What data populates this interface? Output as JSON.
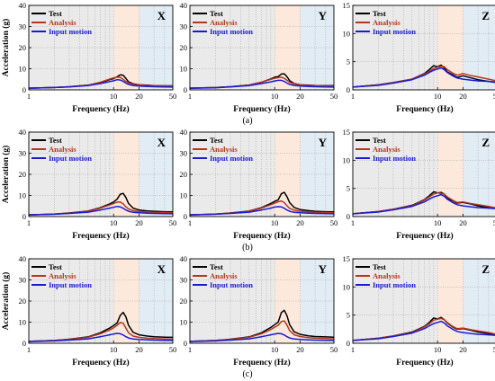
{
  "figure": {
    "row_labels": [
      "(a)",
      "(b)",
      "(c)"
    ],
    "legend_entries": [
      {
        "label": "Test",
        "color": "#000000"
      },
      {
        "label": "Analysis",
        "color": "#b5361c"
      },
      {
        "label": "Input motion",
        "color": "#1a1ad6"
      }
    ],
    "band_colors": {
      "low": "#d9d9d9",
      "mid": "#fbe3d3",
      "high": "#dbe7f3"
    }
  },
  "chart_data": [
    {
      "type": "line",
      "title": "X",
      "xlabel": "Frequency (Hz)",
      "ylabel": "Acceleration (g)",
      "xscale": "log",
      "xlim": [
        1,
        50
      ],
      "ylim": [
        0,
        40
      ],
      "xticks": [
        1,
        10,
        20,
        50
      ],
      "yticks": [
        0,
        10,
        20,
        30,
        40
      ],
      "grid": true,
      "legend_position": "top-left",
      "x": [
        1,
        2,
        3,
        5,
        7,
        9,
        10,
        11,
        12,
        13,
        14,
        15,
        17,
        20,
        25,
        30,
        40,
        50
      ],
      "series": [
        {
          "name": "Test",
          "values": [
            0.8,
            1.1,
            1.5,
            2.2,
            3.4,
            4.8,
            5.3,
            6.2,
            7.1,
            6.9,
            5.4,
            3.8,
            2.9,
            2.4,
            2.2,
            2.0,
            1.9,
            1.9
          ]
        },
        {
          "name": "Analysis",
          "values": [
            0.8,
            1.1,
            1.5,
            2.2,
            3.6,
            5.1,
            5.7,
            6.0,
            5.9,
            5.0,
            4.0,
            3.3,
            2.7,
            2.3,
            2.1,
            2.0,
            1.9,
            1.8
          ]
        },
        {
          "name": "Input motion",
          "values": [
            0.8,
            1.1,
            1.4,
            2.0,
            3.0,
            3.9,
            4.3,
            4.8,
            4.7,
            4.0,
            3.2,
            2.6,
            2.1,
            1.8,
            1.6,
            1.5,
            1.4,
            1.3
          ]
        }
      ]
    },
    {
      "type": "line",
      "title": "Y",
      "xlabel": "Frequency (Hz)",
      "ylabel": "",
      "xscale": "log",
      "xlim": [
        1,
        50
      ],
      "ylim": [
        0,
        40
      ],
      "xticks": [
        1,
        10,
        20,
        50
      ],
      "yticks": [
        0,
        10,
        20,
        30,
        40
      ],
      "grid": true,
      "legend_position": "top-left",
      "x": [
        1,
        2,
        3,
        5,
        7,
        9,
        10,
        11,
        12,
        13,
        14,
        15,
        17,
        20,
        25,
        30,
        40,
        50
      ],
      "series": [
        {
          "name": "Test",
          "values": [
            0.8,
            1.1,
            1.5,
            2.3,
            3.6,
            5.2,
            6.0,
            6.3,
            7.5,
            7.6,
            6.2,
            4.4,
            3.0,
            2.4,
            2.2,
            2.1,
            2.0,
            2.0
          ]
        },
        {
          "name": "Analysis",
          "values": [
            0.8,
            1.1,
            1.5,
            2.3,
            3.6,
            5.0,
            5.5,
            5.8,
            6.0,
            5.4,
            4.5,
            3.6,
            2.8,
            2.3,
            2.1,
            2.0,
            1.9,
            1.8
          ]
        },
        {
          "name": "Input motion",
          "values": [
            0.8,
            1.0,
            1.4,
            2.0,
            3.0,
            3.8,
            4.2,
            4.5,
            4.5,
            4.0,
            3.2,
            2.6,
            2.1,
            1.8,
            1.6,
            1.5,
            1.4,
            1.3
          ]
        }
      ]
    },
    {
      "type": "line",
      "title": "Z",
      "xlabel": "Frequency (Hz)",
      "ylabel": "",
      "xscale": "log",
      "xlim": [
        1,
        50
      ],
      "ylim": [
        0,
        15
      ],
      "xticks": [
        1,
        10,
        20,
        50
      ],
      "yticks": [
        0,
        5,
        10,
        15
      ],
      "grid": true,
      "legend_position": "top-left",
      "x": [
        1,
        2,
        3,
        5,
        7,
        8,
        9,
        10,
        11,
        12,
        13,
        15,
        17,
        20,
        25,
        30,
        40,
        50
      ],
      "series": [
        {
          "name": "Test",
          "values": [
            0.5,
            0.9,
            1.3,
            1.9,
            2.9,
            3.6,
            4.3,
            4.1,
            4.4,
            3.9,
            3.2,
            2.7,
            2.2,
            2.5,
            2.1,
            1.8,
            1.5,
            1.3
          ]
        },
        {
          "name": "Analysis",
          "values": [
            0.5,
            0.9,
            1.3,
            1.9,
            2.8,
            3.3,
            3.8,
            4.0,
            4.2,
            4.1,
            3.6,
            3.0,
            2.6,
            2.9,
            2.5,
            2.3,
            1.9,
            1.6
          ]
        },
        {
          "name": "Input motion",
          "values": [
            0.5,
            0.8,
            1.2,
            1.8,
            2.6,
            3.1,
            3.5,
            3.7,
            3.9,
            3.6,
            3.1,
            2.5,
            2.1,
            1.9,
            1.7,
            1.6,
            1.5,
            1.4
          ]
        }
      ]
    },
    {
      "type": "line",
      "title": "X",
      "xlabel": "Frequency (Hz)",
      "ylabel": "Acceleration (g)",
      "xscale": "log",
      "xlim": [
        1,
        50
      ],
      "ylim": [
        0,
        40
      ],
      "xticks": [
        1,
        10,
        20,
        50
      ],
      "yticks": [
        0,
        10,
        20,
        30,
        40
      ],
      "grid": true,
      "legend_position": "top-left",
      "x": [
        1,
        2,
        3,
        5,
        7,
        9,
        10,
        11,
        12,
        13,
        14,
        15,
        17,
        20,
        25,
        30,
        40,
        50
      ],
      "series": [
        {
          "name": "Test",
          "values": [
            0.8,
            1.2,
            1.7,
            2.6,
            4.2,
            6.0,
            6.9,
            8.2,
            10.6,
            11.0,
            9.0,
            6.2,
            4.0,
            3.1,
            2.7,
            2.5,
            2.3,
            2.2
          ]
        },
        {
          "name": "Analysis",
          "values": [
            0.8,
            1.2,
            1.6,
            2.5,
            4.0,
            5.5,
            6.2,
            6.8,
            6.9,
            6.0,
            4.6,
            3.6,
            2.8,
            2.4,
            2.2,
            2.0,
            1.9,
            1.8
          ]
        },
        {
          "name": "Input motion",
          "values": [
            0.8,
            1.1,
            1.5,
            2.1,
            3.1,
            4.0,
            4.4,
            4.8,
            4.6,
            3.9,
            3.1,
            2.5,
            2.0,
            1.8,
            1.6,
            1.5,
            1.4,
            1.3
          ]
        }
      ]
    },
    {
      "type": "line",
      "title": "Y",
      "xlabel": "Frequency (Hz)",
      "ylabel": "",
      "xscale": "log",
      "xlim": [
        1,
        50
      ],
      "ylim": [
        0,
        40
      ],
      "xticks": [
        1,
        10,
        20,
        50
      ],
      "yticks": [
        0,
        10,
        20,
        30,
        40
      ],
      "grid": true,
      "legend_position": "top-left",
      "x": [
        1,
        2,
        3,
        5,
        7,
        9,
        10,
        11,
        12,
        13,
        14,
        15,
        17,
        20,
        25,
        30,
        40,
        50
      ],
      "series": [
        {
          "name": "Test",
          "values": [
            0.8,
            1.2,
            1.7,
            2.6,
            4.2,
            6.2,
            7.2,
            7.9,
            10.8,
            11.5,
            9.4,
            6.6,
            4.3,
            3.3,
            2.8,
            2.5,
            2.3,
            2.2
          ]
        },
        {
          "name": "Analysis",
          "values": [
            0.8,
            1.2,
            1.6,
            2.5,
            4.0,
            5.6,
            6.4,
            7.0,
            7.4,
            6.6,
            5.1,
            3.9,
            3.0,
            2.5,
            2.2,
            2.0,
            1.9,
            1.8
          ]
        },
        {
          "name": "Input motion",
          "values": [
            0.8,
            1.1,
            1.5,
            2.1,
            3.1,
            4.0,
            4.5,
            4.7,
            4.6,
            3.9,
            3.1,
            2.5,
            2.0,
            1.8,
            1.6,
            1.5,
            1.4,
            1.3
          ]
        }
      ]
    },
    {
      "type": "line",
      "title": "Z",
      "xlabel": "Frequency (Hz)",
      "ylabel": "",
      "xscale": "log",
      "xlim": [
        1,
        50
      ],
      "ylim": [
        0,
        15
      ],
      "xticks": [
        1,
        10,
        20,
        50
      ],
      "yticks": [
        0,
        5,
        10,
        15
      ],
      "grid": true,
      "legend_position": "top-left",
      "x": [
        1,
        2,
        3,
        5,
        7,
        8,
        9,
        10,
        11,
        12,
        13,
        15,
        17,
        20,
        25,
        30,
        40,
        50
      ],
      "series": [
        {
          "name": "Test",
          "values": [
            0.5,
            0.9,
            1.3,
            2.0,
            3.0,
            3.7,
            4.4,
            4.2,
            4.3,
            4.0,
            3.3,
            2.8,
            2.4,
            2.5,
            2.2,
            1.9,
            1.6,
            1.4
          ]
        },
        {
          "name": "Analysis",
          "values": [
            0.5,
            0.9,
            1.3,
            1.9,
            2.9,
            3.5,
            4.0,
            4.2,
            4.1,
            4.0,
            3.5,
            2.9,
            2.5,
            2.6,
            2.3,
            2.1,
            1.8,
            1.5
          ]
        },
        {
          "name": "Input motion",
          "values": [
            0.5,
            0.8,
            1.2,
            1.8,
            2.6,
            3.1,
            3.5,
            3.7,
            3.9,
            3.6,
            3.1,
            2.5,
            2.1,
            1.9,
            1.7,
            1.6,
            1.5,
            1.4
          ]
        }
      ]
    },
    {
      "type": "line",
      "title": "X",
      "xlabel": "Frequency (Hz)",
      "ylabel": "Acceleration (g)",
      "xscale": "log",
      "xlim": [
        1,
        50
      ],
      "ylim": [
        0,
        40
      ],
      "xticks": [
        1,
        10,
        20,
        50
      ],
      "yticks": [
        0,
        10,
        20,
        30,
        40
      ],
      "grid": true,
      "legend_position": "top-left",
      "x": [
        1,
        2,
        3,
        5,
        7,
        9,
        10,
        11,
        12,
        13,
        14,
        15,
        17,
        20,
        25,
        30,
        40,
        50
      ],
      "series": [
        {
          "name": "Test",
          "values": [
            0.9,
            1.3,
            1.9,
            3.0,
            5.0,
            7.2,
            8.4,
            9.6,
            13.2,
            14.6,
            12.5,
            8.5,
            5.2,
            4.0,
            3.4,
            3.1,
            2.9,
            2.8
          ]
        },
        {
          "name": "Analysis",
          "values": [
            0.9,
            1.3,
            1.8,
            2.8,
            4.5,
            6.3,
            7.3,
            8.5,
            9.8,
            9.5,
            7.2,
            5.0,
            3.4,
            2.8,
            2.4,
            2.2,
            2.0,
            1.9
          ]
        },
        {
          "name": "Input motion",
          "values": [
            0.8,
            1.1,
            1.5,
            2.1,
            3.1,
            4.0,
            4.4,
            4.7,
            4.5,
            3.9,
            3.1,
            2.5,
            2.0,
            1.8,
            1.6,
            1.5,
            1.4,
            1.3
          ]
        }
      ]
    },
    {
      "type": "line",
      "title": "Y",
      "xlabel": "Frequency (Hz)",
      "ylabel": "",
      "xscale": "log",
      "xlim": [
        1,
        50
      ],
      "ylim": [
        0,
        40
      ],
      "xticks": [
        1,
        10,
        20,
        50
      ],
      "yticks": [
        0,
        10,
        20,
        30,
        40
      ],
      "grid": true,
      "legend_position": "top-left",
      "x": [
        1,
        2,
        3,
        5,
        7,
        9,
        10,
        11,
        12,
        13,
        14,
        15,
        17,
        20,
        25,
        30,
        40,
        50
      ],
      "series": [
        {
          "name": "Test",
          "values": [
            0.9,
            1.3,
            1.9,
            3.0,
            5.0,
            7.5,
            8.8,
            10.0,
            14.5,
            15.6,
            13.0,
            8.8,
            5.4,
            4.2,
            3.5,
            3.2,
            3.0,
            2.9
          ]
        },
        {
          "name": "Analysis",
          "values": [
            0.9,
            1.3,
            1.8,
            2.8,
            4.5,
            6.5,
            7.6,
            8.5,
            10.3,
            10.6,
            8.6,
            6.0,
            4.0,
            3.2,
            2.7,
            2.4,
            2.2,
            2.1
          ]
        },
        {
          "name": "Input motion",
          "values": [
            0.8,
            1.1,
            1.5,
            2.1,
            3.1,
            4.0,
            4.4,
            4.7,
            4.5,
            3.9,
            3.1,
            2.5,
            2.0,
            1.8,
            1.6,
            1.5,
            1.4,
            1.3
          ]
        }
      ]
    },
    {
      "type": "line",
      "title": "Z",
      "xlabel": "Frequency (Hz)",
      "ylabel": "",
      "xscale": "log",
      "xlim": [
        1,
        50
      ],
      "ylim": [
        0,
        15
      ],
      "xticks": [
        1,
        10,
        20,
        50
      ],
      "yticks": [
        0,
        5,
        10,
        15
      ],
      "grid": true,
      "legend_position": "top-left",
      "x": [
        1,
        2,
        3,
        5,
        7,
        8,
        9,
        10,
        11,
        12,
        13,
        15,
        17,
        20,
        25,
        30,
        40,
        50
      ],
      "series": [
        {
          "name": "Test",
          "values": [
            0.5,
            0.9,
            1.3,
            2.0,
            3.0,
            3.7,
            4.5,
            4.3,
            4.6,
            4.2,
            3.6,
            2.9,
            2.5,
            2.6,
            2.3,
            2.0,
            1.7,
            1.5
          ]
        },
        {
          "name": "Analysis",
          "values": [
            0.5,
            0.9,
            1.3,
            1.9,
            2.9,
            3.5,
            4.1,
            4.3,
            4.4,
            4.2,
            3.7,
            3.0,
            2.6,
            2.7,
            2.4,
            2.2,
            1.9,
            1.6
          ]
        },
        {
          "name": "Input motion",
          "values": [
            0.5,
            0.8,
            1.2,
            1.8,
            2.6,
            3.1,
            3.5,
            3.7,
            3.9,
            3.6,
            3.1,
            2.5,
            2.1,
            1.9,
            1.7,
            1.6,
            1.5,
            1.4
          ]
        }
      ]
    }
  ]
}
